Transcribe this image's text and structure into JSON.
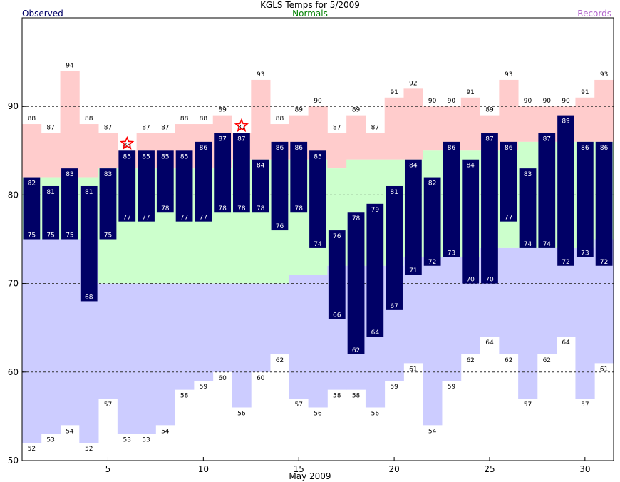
{
  "chart_data": {
    "type": "bar",
    "title": "KGLS Temps for 5/2009",
    "xlabel": "May 2009",
    "ylabel": "",
    "legend": {
      "observed": "Observed",
      "normals": "Normals",
      "records": "Records"
    },
    "xlim": [
      0.5,
      31.5
    ],
    "ylim": [
      50,
      100
    ],
    "xticks": [
      5,
      10,
      15,
      20,
      25,
      30
    ],
    "yticks": [
      50,
      60,
      70,
      80,
      90
    ],
    "grid_lines": [
      60,
      70,
      80,
      90
    ],
    "days": [
      1,
      2,
      3,
      4,
      5,
      6,
      7,
      8,
      9,
      10,
      11,
      12,
      13,
      14,
      15,
      16,
      17,
      18,
      19,
      20,
      21,
      22,
      23,
      24,
      25,
      26,
      27,
      28,
      29,
      30,
      31
    ],
    "observed_high": [
      82,
      81,
      83,
      81,
      83,
      85,
      85,
      85,
      85,
      86,
      87,
      87,
      84,
      86,
      86,
      85,
      76,
      78,
      79,
      81,
      84,
      82,
      86,
      84,
      87,
      86,
      83,
      87,
      89,
      86,
      86
    ],
    "observed_low": [
      75,
      75,
      75,
      68,
      75,
      77,
      77,
      78,
      77,
      77,
      78,
      78,
      78,
      76,
      78,
      74,
      66,
      62,
      64,
      67,
      71,
      72,
      73,
      70,
      70,
      77,
      74,
      74,
      72,
      73,
      72
    ],
    "normal_high": [
      82,
      82,
      82,
      82,
      83,
      83,
      83,
      83,
      83,
      83,
      83,
      84,
      84,
      84,
      84,
      84,
      83,
      84,
      84,
      84,
      84,
      85,
      85,
      85,
      85,
      85,
      86,
      86,
      86,
      86,
      86
    ],
    "normal_low": [
      75,
      75,
      75,
      75,
      70,
      70,
      70,
      70,
      70,
      70,
      70,
      70,
      70,
      70,
      71,
      71,
      72,
      72,
      72,
      72,
      73,
      73,
      73,
      73,
      74,
      74,
      74,
      74,
      74,
      74,
      75
    ],
    "record_high": [
      88,
      87,
      94,
      88,
      87,
      85,
      87,
      87,
      88,
      88,
      89,
      87,
      93,
      88,
      89,
      90,
      87,
      89,
      87,
      91,
      92,
      90,
      90,
      91,
      89,
      93,
      90,
      90,
      90,
      91,
      93
    ],
    "record_low": [
      52,
      53,
      54,
      52,
      57,
      53,
      53,
      54,
      58,
      59,
      60,
      56,
      60,
      62,
      57,
      56,
      58,
      58,
      56,
      59,
      61,
      54,
      59,
      62,
      64,
      62,
      57,
      62,
      64,
      57,
      61
    ],
    "record_high_show_label": [
      true,
      true,
      true,
      true,
      true,
      true,
      true,
      true,
      true,
      true,
      true,
      true,
      true,
      true,
      true,
      true,
      true,
      true,
      true,
      true,
      true,
      true,
      true,
      true,
      true,
      true,
      true,
      true,
      true,
      true,
      true
    ],
    "record_markers": [
      6,
      12
    ],
    "colors": {
      "record": "#ffcccc",
      "normal": "#ccffcc",
      "record_low": "#ccccff",
      "observed": "#000066",
      "marker": "#ff0000",
      "grid": "#333333"
    }
  }
}
